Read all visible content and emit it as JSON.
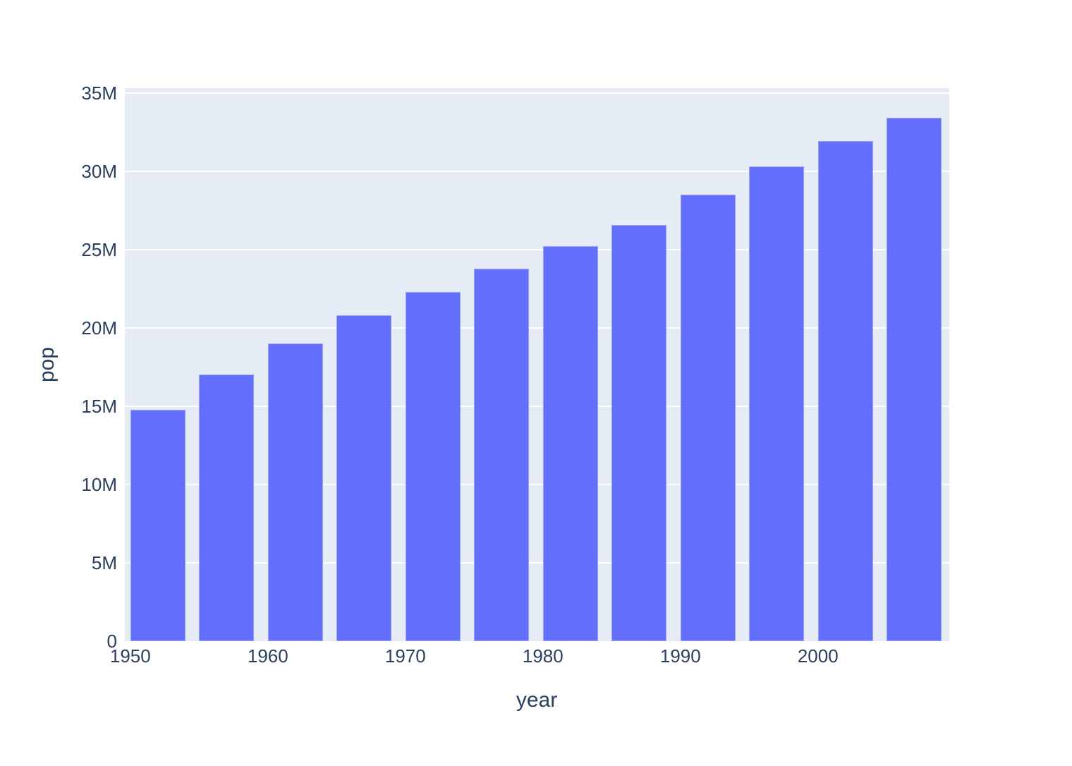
{
  "chart_data": {
    "type": "bar",
    "title": "",
    "xlabel": "year",
    "ylabel": "pop",
    "x": [
      1952,
      1957,
      1962,
      1967,
      1972,
      1977,
      1982,
      1987,
      1992,
      1997,
      2002,
      2007
    ],
    "values": [
      14785584,
      17010154,
      18985849,
      20819767,
      22284500,
      23796400,
      25201900,
      26549700,
      28523502,
      30305843,
      31902268,
      33390141
    ],
    "x_ticks": [
      {
        "value": 1950,
        "label": "1950"
      },
      {
        "value": 1960,
        "label": "1960"
      },
      {
        "value": 1970,
        "label": "1970"
      },
      {
        "value": 1980,
        "label": "1980"
      },
      {
        "value": 1990,
        "label": "1990"
      },
      {
        "value": 2000,
        "label": "2000"
      }
    ],
    "y_ticks": [
      {
        "value": 0,
        "label": "0"
      },
      {
        "value": 5000000,
        "label": "5M"
      },
      {
        "value": 10000000,
        "label": "10M"
      },
      {
        "value": 15000000,
        "label": "15M"
      },
      {
        "value": 20000000,
        "label": "20M"
      },
      {
        "value": 25000000,
        "label": "25M"
      },
      {
        "value": 30000000,
        "label": "30M"
      },
      {
        "value": 35000000,
        "label": "35M"
      }
    ],
    "xlim": [
      1949.6,
      2009.55
    ],
    "ylim": [
      0,
      35300000
    ],
    "bar_width_years": 4,
    "grid": true,
    "legend": "none",
    "colors": {
      "bar": "#636EFA",
      "plot_bg": "#E5ECF6",
      "grid": "#FFFFFF",
      "text": "#2A3F5F",
      "page_bg": "#FFFFFF"
    }
  }
}
